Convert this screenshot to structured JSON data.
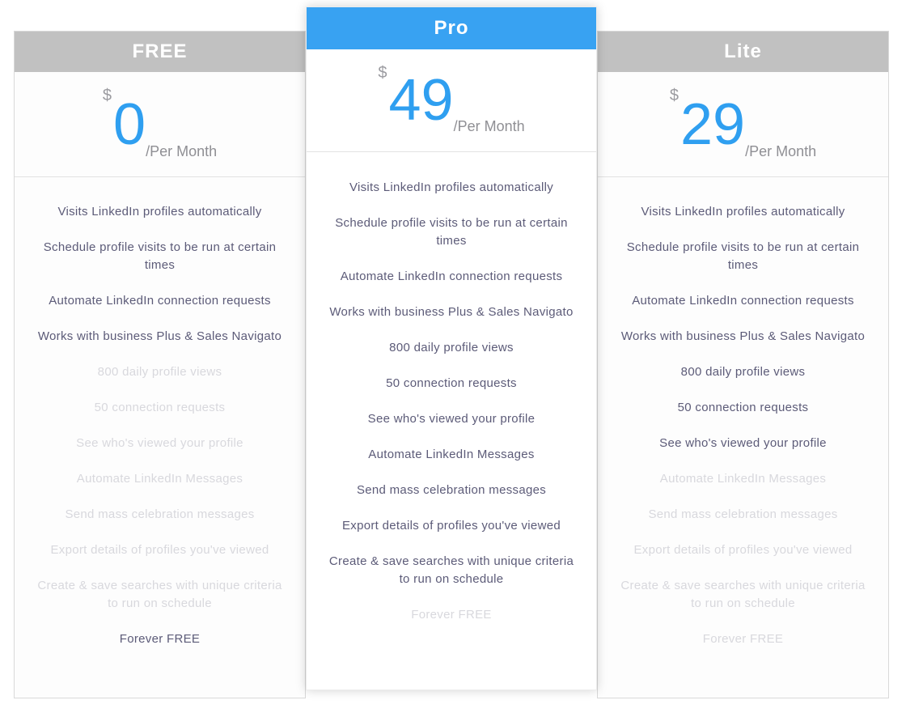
{
  "colors": {
    "accent_blue": "#2f9ff0",
    "header_blue": "#38a2f2",
    "header_gray": "#c1c1c1",
    "header_text": "#ffffff",
    "feature_active": "#5c5b78",
    "feature_disabled": "#d8d8dd",
    "muted_gray": "#8f8f94",
    "card_background": "#fdfdfd",
    "card_border": "#d9d9d9"
  },
  "plans": [
    {
      "name": "FREE",
      "featured": false,
      "currency": "$",
      "price": "0",
      "period": "/Per Month",
      "features": [
        {
          "label": "Visits LinkedIn profiles automatically",
          "enabled": true
        },
        {
          "label": "Schedule profile visits to be run at certain times",
          "enabled": true
        },
        {
          "label": "Automate LinkedIn connection requests",
          "enabled": true
        },
        {
          "label": "Works with business Plus & Sales Navigato",
          "enabled": true
        },
        {
          "label": "800 daily profile views",
          "enabled": false
        },
        {
          "label": "50 connection requests",
          "enabled": false
        },
        {
          "label": "See who's viewed your profile",
          "enabled": false
        },
        {
          "label": "Automate LinkedIn Messages",
          "enabled": false
        },
        {
          "label": "Send mass celebration messages",
          "enabled": false
        },
        {
          "label": "Export details of profiles you've viewed",
          "enabled": false
        },
        {
          "label": "Create & save searches with unique criteria to run on schedule",
          "enabled": false
        },
        {
          "label": "Forever FREE",
          "enabled": true
        }
      ]
    },
    {
      "name": "Pro",
      "featured": true,
      "currency": "$",
      "price": "49",
      "period": "/Per Month",
      "features": [
        {
          "label": "Visits LinkedIn profiles automatically",
          "enabled": true
        },
        {
          "label": "Schedule profile visits to be run at certain times",
          "enabled": true
        },
        {
          "label": "Automate LinkedIn connection requests",
          "enabled": true
        },
        {
          "label": "Works with business Plus & Sales Navigato",
          "enabled": true
        },
        {
          "label": "800 daily profile views",
          "enabled": true
        },
        {
          "label": "50 connection requests",
          "enabled": true
        },
        {
          "label": "See who's viewed your profile",
          "enabled": true
        },
        {
          "label": "Automate LinkedIn Messages",
          "enabled": true
        },
        {
          "label": "Send mass celebration messages",
          "enabled": true
        },
        {
          "label": "Export details of profiles you've viewed",
          "enabled": true
        },
        {
          "label": "Create & save searches with unique criteria to run on schedule",
          "enabled": true
        },
        {
          "label": "Forever FREE",
          "enabled": false
        }
      ]
    },
    {
      "name": "Lite",
      "featured": false,
      "currency": "$",
      "price": "29",
      "period": "/Per Month",
      "features": [
        {
          "label": "Visits LinkedIn profiles automatically",
          "enabled": true
        },
        {
          "label": "Schedule profile visits to be run at certain times",
          "enabled": true
        },
        {
          "label": "Automate LinkedIn connection requests",
          "enabled": true
        },
        {
          "label": "Works with business Plus & Sales Navigato",
          "enabled": true
        },
        {
          "label": "800 daily profile views",
          "enabled": true
        },
        {
          "label": "50 connection requests",
          "enabled": true
        },
        {
          "label": "See who's viewed your profile",
          "enabled": true
        },
        {
          "label": "Automate LinkedIn Messages",
          "enabled": false
        },
        {
          "label": "Send mass celebration messages",
          "enabled": false
        },
        {
          "label": "Export details of profiles you've viewed",
          "enabled": false
        },
        {
          "label": "Create & save searches with unique criteria to run on schedule",
          "enabled": false
        },
        {
          "label": "Forever FREE",
          "enabled": false
        }
      ]
    }
  ]
}
